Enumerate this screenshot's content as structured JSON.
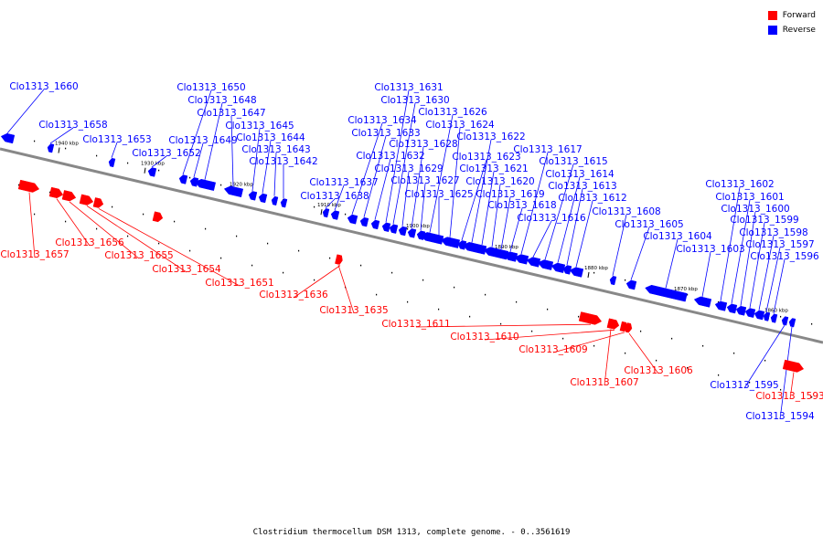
{
  "caption": "Clostridium thermocellum DSM 1313, complete genome. - 0..3561619",
  "legend": {
    "forward_label": "Forward",
    "reverse_label": "Reverse",
    "forward_color": "#ff0000",
    "reverse_color": "#0000ff"
  },
  "map": {
    "backbone_color": "#888888",
    "ticks": [
      "1940 kbp",
      "1930 kbp",
      "1920 kbp",
      "1910 kbp",
      "1900 kbp",
      "1890 kbp",
      "1880 kbp",
      "1870 kbp",
      "1860 kbp"
    ],
    "reverse_genes": [
      "Clo1313_1660",
      "Clo1313_1658",
      "Clo1313_1653",
      "Clo1313_1652",
      "Clo1313_1650",
      "Clo1313_1649",
      "Clo1313_1648",
      "Clo1313_1647",
      "Clo1313_1645",
      "Clo1313_1644",
      "Clo1313_1643",
      "Clo1313_1642",
      "Clo1313_1638",
      "Clo1313_1637",
      "Clo1313_1634",
      "Clo1313_1633",
      "Clo1313_1632",
      "Clo1313_1631",
      "Clo1313_1630",
      "Clo1313_1629",
      "Clo1313_1628",
      "Clo1313_1627",
      "Clo1313_1626",
      "Clo1313_1625",
      "Clo1313_1624",
      "Clo1313_1623",
      "Clo1313_1622",
      "Clo1313_1621",
      "Clo1313_1620",
      "Clo1313_1619",
      "Clo1313_1618",
      "Clo1313_1617",
      "Clo1313_1616",
      "Clo1313_1615",
      "Clo1313_1614",
      "Clo1313_1613",
      "Clo1313_1612",
      "Clo1313_1608",
      "Clo1313_1605",
      "Clo1313_1604",
      "Clo1313_1603",
      "Clo1313_1602",
      "Clo1313_1601",
      "Clo1313_1600",
      "Clo1313_1599",
      "Clo1313_1598",
      "Clo1313_1597",
      "Clo1313_1596",
      "Clo1313_1595",
      "Clo1313_1594"
    ],
    "forward_genes": [
      "Clo1313_1657",
      "Clo1313_1656",
      "Clo1313_1655",
      "Clo1313_1654",
      "Clo1313_1651",
      "Clo1313_1636",
      "Clo1313_1635",
      "Clo1313_1611",
      "Clo1313_1610",
      "Clo1313_1609",
      "Clo1313_1607",
      "Clo1313_1606",
      "Clo1313_1593"
    ]
  }
}
